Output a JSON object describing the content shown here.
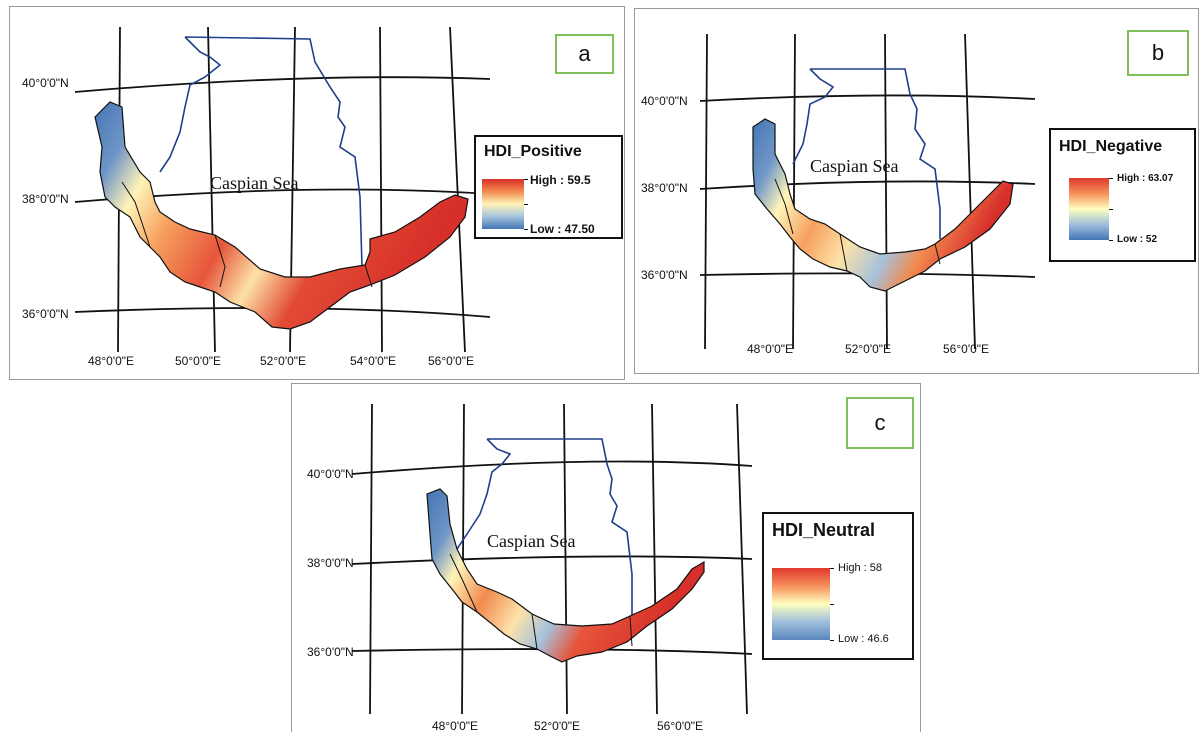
{
  "panels": {
    "a": {
      "tag": "a",
      "sea_label": "Caspian Sea",
      "legend_title": "HDI_Positive",
      "legend_high": "High : 59.5",
      "legend_low": "Low : 47.50",
      "lat_labels": [
        "40°0'0\"N",
        "38°0'0\"N",
        "36°0'0\"N"
      ],
      "lon_labels": [
        "48°0'0\"E",
        "50°0'0\"E",
        "52°0'0\"E",
        "54°0'0\"E",
        "56°0'0\"E"
      ]
    },
    "b": {
      "tag": "b",
      "sea_label": "Caspian Sea",
      "legend_title": "HDI_Negative",
      "legend_high": "High : 63.07",
      "legend_low": "Low : 52",
      "lat_labels": [
        "40°0'0\"N",
        "38°0'0\"N",
        "36°0'0\"N"
      ],
      "lon_labels": [
        "48°0'0\"E",
        "52°0'0\"E",
        "56°0'0\"E"
      ]
    },
    "c": {
      "tag": "c",
      "sea_label": "Caspian Sea",
      "legend_title": "HDI_Neutral",
      "legend_high": "High : 58",
      "legend_low": "Low : 46.6",
      "lat_labels": [
        "40°0'0\"N",
        "38°0'0\"N",
        "36°0'0\"N"
      ],
      "lon_labels": [
        "48°0'0\"E",
        "52°0'0\"E",
        "56°0'0\"E"
      ]
    }
  },
  "colors": {
    "high": "#d7302a",
    "mid": "#ffffbf",
    "low": "#4575b4",
    "coast": "#1f3f8a",
    "graticule": "#111111",
    "tag_border": "#7fc05a"
  }
}
